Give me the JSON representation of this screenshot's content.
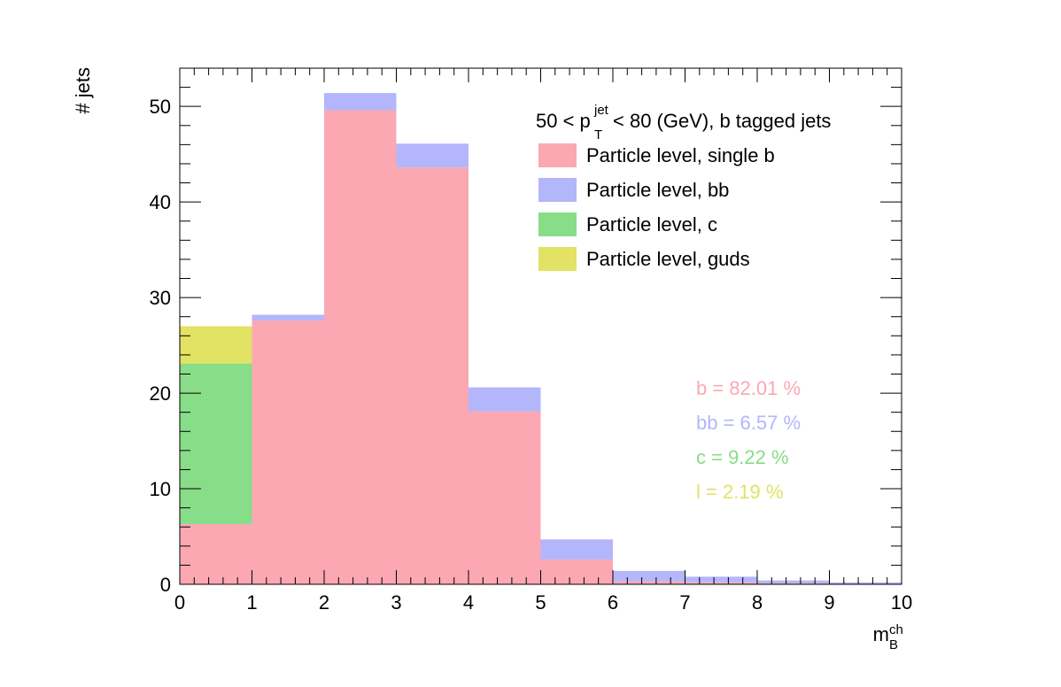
{
  "chart_data": {
    "type": "bar",
    "stacked": true,
    "bin_edges": [
      0,
      1,
      2,
      3,
      4,
      5,
      6,
      7,
      8,
      9,
      10
    ],
    "title": "",
    "ylabel": "# jets",
    "xlabel": {
      "base": "m",
      "sup": "ch",
      "sub": "B"
    },
    "xlim": [
      0,
      10
    ],
    "ylim": [
      0,
      54
    ],
    "xticks": [
      "0",
      "1",
      "2",
      "3",
      "4",
      "5",
      "6",
      "7",
      "8",
      "9",
      "10"
    ],
    "yticks": [
      "0",
      "10",
      "20",
      "30",
      "40",
      "50"
    ],
    "grid": false,
    "legend": {
      "placement": "top-right",
      "header": {
        "pre": "50 < p",
        "sup": "jet",
        "sub": "T",
        "post": " < 80 (GeV), b tagged jets"
      }
    },
    "series": [
      {
        "name": "Particle level, single b",
        "color": "#fba8b2",
        "values": [
          6.3,
          27.6,
          49.6,
          43.6,
          18.1,
          2.6,
          0.3,
          0.2,
          0.1,
          0.05
        ]
      },
      {
        "name": "Particle level, bb",
        "color": "#b3b6fb",
        "values": [
          0,
          0.6,
          1.8,
          2.5,
          2.5,
          2.1,
          1.1,
          0.6,
          0.3,
          0.15
        ]
      },
      {
        "name": "Particle level, c",
        "color": "#88dd88",
        "values": [
          16.8,
          0,
          0,
          0,
          0,
          0,
          0,
          0,
          0,
          0
        ]
      },
      {
        "name": "Particle level, guds",
        "color": "#e2e264",
        "values": [
          3.9,
          0,
          0,
          0,
          0,
          0,
          0,
          0,
          0,
          0
        ]
      }
    ],
    "annotations": [
      {
        "text": "b = 82.01 %",
        "color": "#fba8b2"
      },
      {
        "text": "bb = 6.57 %",
        "color": "#b3b6fb"
      },
      {
        "text": "c = 9.22 %",
        "color": "#88dd88"
      },
      {
        "text": "l = 2.19 %",
        "color": "#e2e264"
      }
    ]
  }
}
